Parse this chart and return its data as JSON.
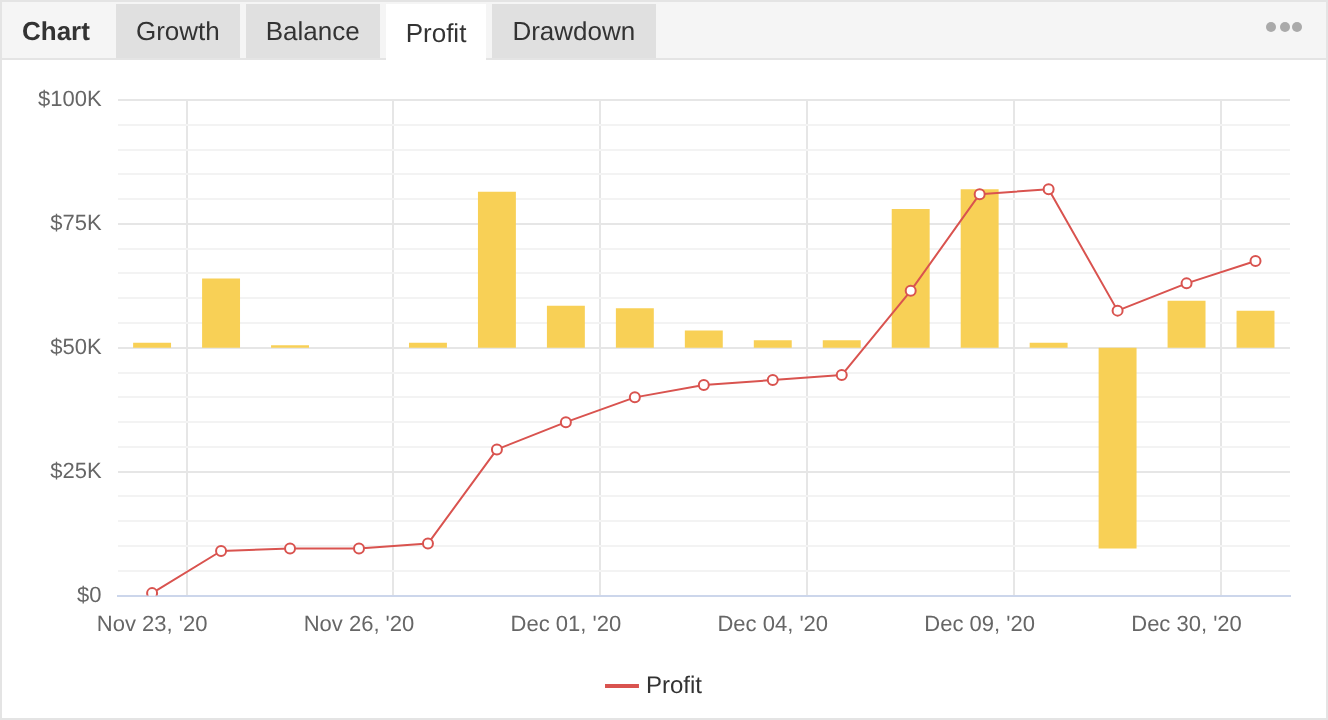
{
  "chart_data": {
    "type": "bar",
    "annotations": [
      "Chart",
      "Growth",
      "Balance",
      "Profit",
      "Drawdown"
    ],
    "categories": [
      "Nov 23, '20",
      null,
      null,
      "Nov 26, '20",
      null,
      null,
      "Dec 01, '20",
      null,
      null,
      "Dec 04, '20",
      null,
      null,
      "Dec 09, '20",
      null,
      null,
      "Dec 30, '20",
      null
    ],
    "series": [
      {
        "color": "#f8d056",
        "base": [
          50000,
          50000,
          50000,
          null,
          50000,
          50000,
          50000,
          50000,
          50000,
          50000,
          50000,
          50000,
          50000,
          50000,
          50000,
          50000,
          50000
        ],
        "values": [
          1000,
          14000,
          500,
          null,
          1000,
          31500,
          8500,
          8000,
          3500,
          1500,
          1500,
          28000,
          32000,
          1000,
          -40500,
          9500,
          7500
        ]
      },
      {
        "type": "line",
        "name": "Profit",
        "color": "#d9534f",
        "values": [
          500,
          9000,
          9500,
          9500,
          10500,
          29500,
          35000,
          40000,
          42500,
          43500,
          44500,
          61500,
          81000,
          82000,
          57500,
          63000,
          67500
        ]
      }
    ],
    "ylim": [
      0,
      100000
    ],
    "yticks": [
      {
        "value": 0,
        "label": "$0"
      },
      {
        "value": 5000,
        "label": null
      },
      {
        "value": 10000,
        "label": null
      },
      {
        "value": 15000,
        "label": null
      },
      {
        "value": 20000,
        "label": null
      },
      {
        "value": 25000,
        "label": "$25K"
      },
      {
        "value": 30000,
        "label": null
      },
      {
        "value": 35000,
        "label": null
      },
      {
        "value": 40000,
        "label": null
      },
      {
        "value": 45000,
        "label": null
      },
      {
        "value": 50000,
        "label": "$50K"
      },
      {
        "value": 55000,
        "label": null
      },
      {
        "value": 60000,
        "label": null
      },
      {
        "value": 65000,
        "label": null
      },
      {
        "value": 70000,
        "label": null
      },
      {
        "value": 75000,
        "label": "$75K"
      },
      {
        "value": 80000,
        "label": null
      },
      {
        "value": 85000,
        "label": null
      },
      {
        "value": 90000,
        "label": null
      },
      {
        "value": 95000,
        "label": null
      },
      {
        "value": 100000,
        "label": "$100K"
      }
    ],
    "grid": true,
    "legend": "bottom",
    "marker": "circle",
    "line_style": "solid"
  }
}
